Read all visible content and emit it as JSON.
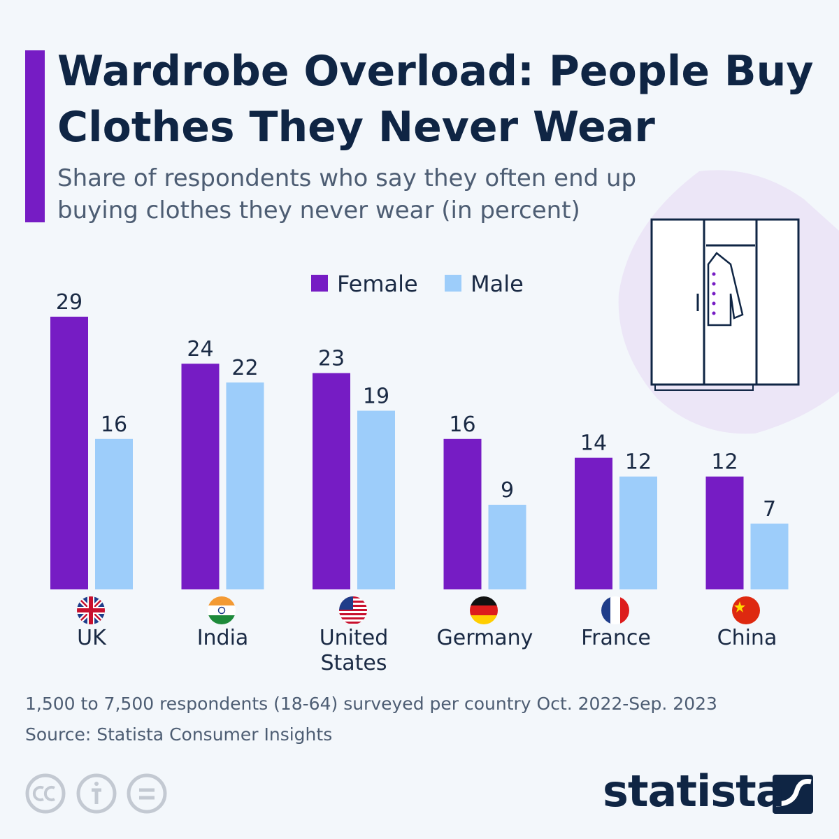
{
  "chart_data": {
    "type": "bar",
    "title": "Wardrobe Overload: People Buy Clothes They Never Wear",
    "subtitle": "Share of respondents who say they often end up buying clothes they never wear (in percent)",
    "categories": [
      "UK",
      "India",
      "United States",
      "Germany",
      "France",
      "China"
    ],
    "series": [
      {
        "name": "Female",
        "color": "#761cc4",
        "values": [
          29,
          24,
          23,
          16,
          14,
          12
        ]
      },
      {
        "name": "Male",
        "color": "#9dcdfa",
        "values": [
          16,
          22,
          19,
          9,
          12,
          7
        ]
      }
    ],
    "note": "1,500 to 7,500 respondents (18-64) surveyed per country Oct. 2022-Sep. 2023",
    "source": "Source: Statista Consumer Insights",
    "brand": "statista"
  }
}
